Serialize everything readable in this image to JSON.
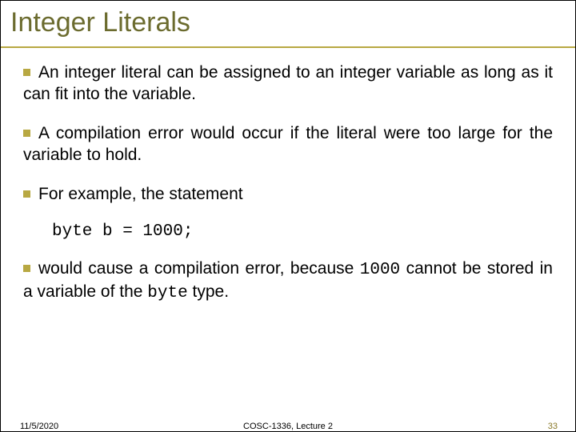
{
  "title": "Integer Literals",
  "bullets": {
    "b1": "An integer literal can be assigned to an integer variable as long as it can fit into the variable.",
    "b2": "A compilation error would occur if the literal were too large for the variable to hold.",
    "b3": "For example, the statement",
    "b4_pre": "would cause a compilation error, because ",
    "b4_code": "1000",
    "b4_mid": " cannot be stored in a variable of the ",
    "b4_code2": "byte",
    "b4_post": " type."
  },
  "code": "byte b = 1000;",
  "footer": {
    "date": "11/5/2020",
    "center": "COSC-1336, Lecture 2",
    "page": "33"
  },
  "colors": {
    "accent": "#b8a842",
    "title": "#6b6b2e",
    "page_num": "#8a7a2a"
  }
}
